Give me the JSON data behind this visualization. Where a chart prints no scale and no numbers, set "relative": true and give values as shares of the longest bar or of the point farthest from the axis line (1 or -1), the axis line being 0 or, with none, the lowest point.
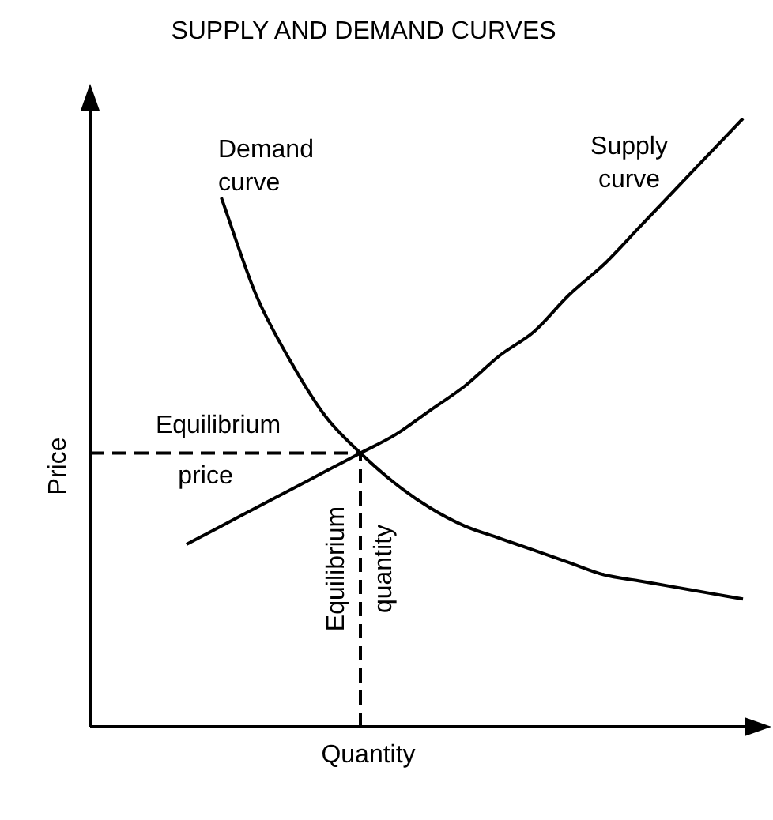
{
  "chart_data": {
    "type": "line",
    "title": "SUPPLY AND DEMAND CURVES",
    "xlabel": "Quantity",
    "ylabel": "Price",
    "relative": true,
    "marker": "none",
    "line_style": "solid",
    "legend": false,
    "categories": [
      null,
      null,
      null,
      null,
      null,
      null,
      null,
      null,
      null,
      null,
      null,
      null,
      null,
      null,
      null,
      null,
      null
    ],
    "series": [
      {
        "name": "Demand curve",
        "color": "#000000",
        "values": [
          null,
          0.87,
          0.71,
          0.6,
          0.51,
          0.45,
          0.4,
          0.36,
          0.33,
          0.31,
          0.29,
          0.27,
          0.25,
          0.24,
          0.23,
          0.22,
          0.21
        ]
      },
      {
        "name": "Supply curve",
        "color": "#000000",
        "values": [
          0.3,
          0.33,
          0.36,
          0.39,
          0.42,
          0.45,
          0.48,
          0.52,
          0.56,
          0.61,
          0.65,
          0.71,
          0.76,
          0.82,
          0.88,
          0.94,
          1.0
        ]
      }
    ],
    "ref_lines": [
      {
        "axis": "y",
        "value": 0.45,
        "label": "Equilibrium price",
        "line_style": "dashed",
        "color": "#000000"
      }
    ],
    "annotations": [
      "Equilibrium quantity"
    ]
  }
}
